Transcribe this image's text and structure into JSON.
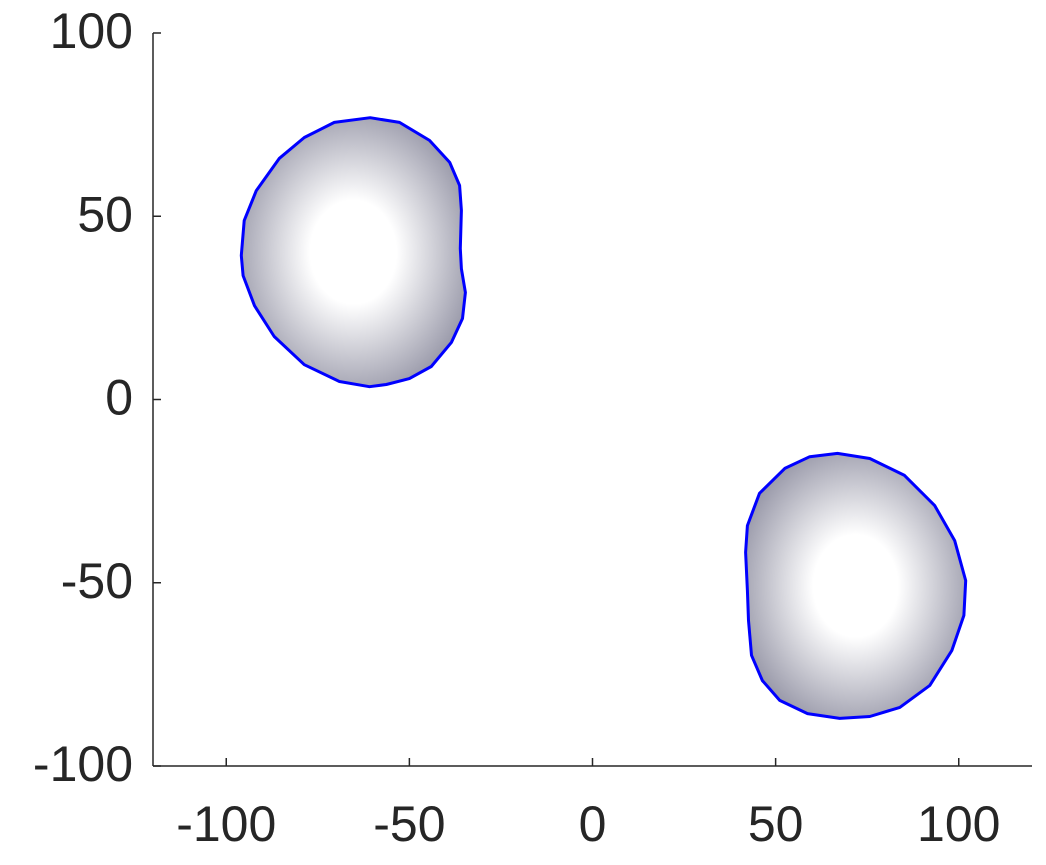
{
  "chart_data": {
    "type": "line",
    "xlim": [
      -120,
      120
    ],
    "ylim": [
      -100,
      100
    ],
    "xticks": [
      -100,
      -50,
      0,
      50,
      100
    ],
    "yticks": [
      -100,
      -50,
      0,
      50,
      100
    ],
    "closed": true,
    "fill_colors": [
      "#ffffff",
      "#9a9aaa"
    ],
    "series": [
      {
        "color": "#0000ff",
        "x": [
          -60.7,
          -52.7,
          -44.5,
          -39.0,
          -36.3,
          -35.8,
          -36.1,
          -35.8,
          -34.7,
          -35.5,
          -38.5,
          -44.0,
          -50.0,
          -56.3,
          -60.9,
          -69.1,
          -78.7,
          -86.9,
          -92.3,
          -95.4,
          -95.9,
          -95.1,
          -91.8,
          -85.5,
          -78.7,
          -70.5
        ],
        "values": [
          76.9,
          75.6,
          70.7,
          64.7,
          58.4,
          51.6,
          41.2,
          35.7,
          29.2,
          22.1,
          15.6,
          9.0,
          5.7,
          4.1,
          3.5,
          4.9,
          9.5,
          17.2,
          25.6,
          33.8,
          39.3,
          48.8,
          57.0,
          65.8,
          71.5,
          75.6
        ]
      },
      {
        "color": "#0000ff",
        "x": [
          66.9,
          75.7,
          85.2,
          93.4,
          98.9,
          101.9,
          101.4,
          98.1,
          92.1,
          83.9,
          75.7,
          67.5,
          58.7,
          51.1,
          46.4,
          43.4,
          42.6,
          42.3,
          41.8,
          42.3,
          45.6,
          52.5,
          59.3
        ],
        "values": [
          -14.7,
          -16.1,
          -20.7,
          -28.9,
          -38.5,
          -49.4,
          -58.9,
          -68.5,
          -78.0,
          -84.0,
          -86.5,
          -87.0,
          -85.7,
          -82.1,
          -76.7,
          -69.8,
          -60.3,
          -52.1,
          -41.7,
          -34.4,
          -25.6,
          -18.8,
          -15.6
        ]
      }
    ]
  }
}
